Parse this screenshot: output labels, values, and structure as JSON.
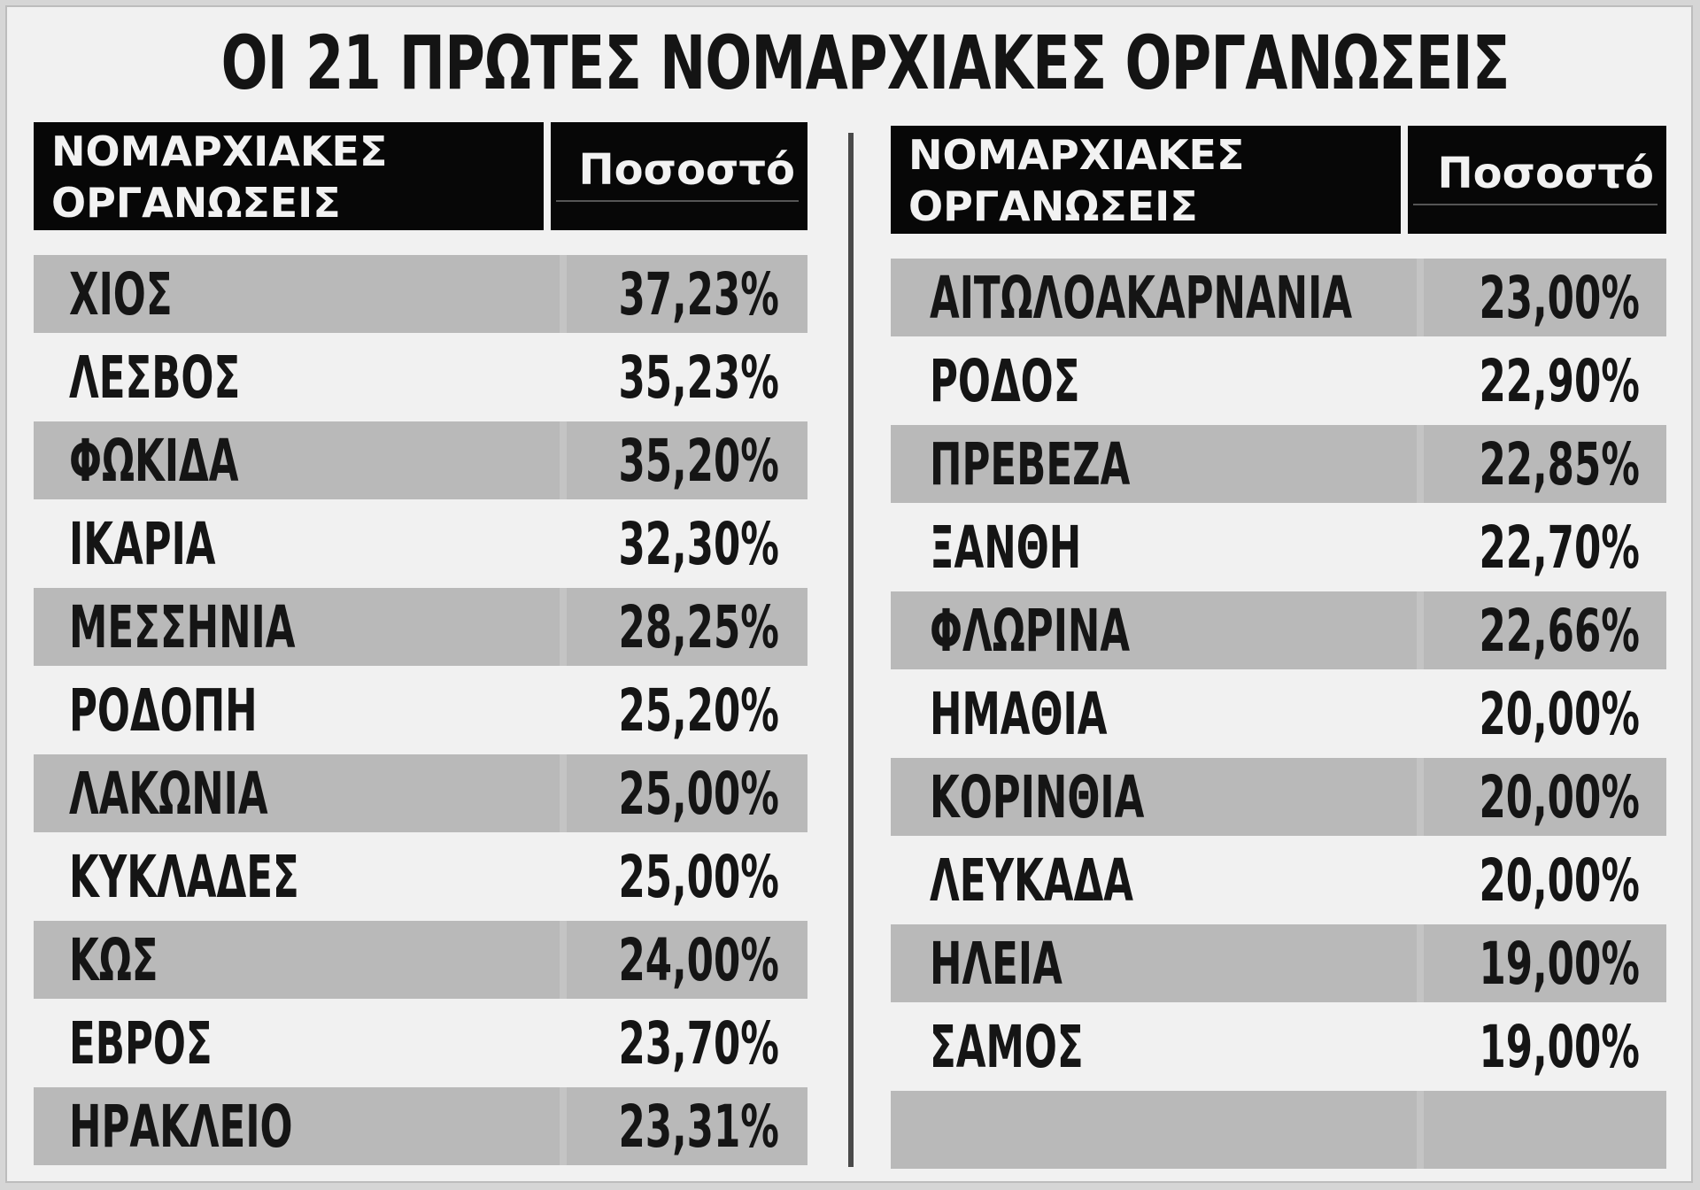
{
  "title": "ΟΙ 21 ΠΡΩΤΕΣ ΝΟΜΑΡΧΙΑΚΕΣ ΟΡΓΑΝΩΣΕΙΣ",
  "header": {
    "name_line1": "ΝΟΜΑΡΧΙΑΚΕΣ",
    "name_line2": "ΟΡΓΑΝΩΣΕΙΣ",
    "percent": "Ποσοστό"
  },
  "left_rows": [
    {
      "name": "ΧΙΟΣ",
      "pct": "37,23%"
    },
    {
      "name": "ΛΕΣΒΟΣ",
      "pct": "35,23%"
    },
    {
      "name": "ΦΩΚΙΔΑ",
      "pct": "35,20%"
    },
    {
      "name": "ΙΚΑΡΙΑ",
      "pct": "32,30%"
    },
    {
      "name": "ΜΕΣΣΗΝΙΑ",
      "pct": "28,25%"
    },
    {
      "name": "ΡΟΔΟΠΗ",
      "pct": "25,20%"
    },
    {
      "name": "ΛΑΚΩΝΙΑ",
      "pct": "25,00%"
    },
    {
      "name": "ΚΥΚΛΑΔΕΣ",
      "pct": "25,00%"
    },
    {
      "name": "ΚΩΣ",
      "pct": "24,00%"
    },
    {
      "name": "ΕΒΡΟΣ",
      "pct": "23,70%"
    },
    {
      "name": "ΗΡΑΚΛΕΙΟ",
      "pct": "23,31%"
    }
  ],
  "right_rows": [
    {
      "name": "ΑΙΤΩΛΟΑΚΑΡΝΑΝΙΑ",
      "pct": "23,00%"
    },
    {
      "name": "ΡΟΔΟΣ",
      "pct": "22,90%"
    },
    {
      "name": "ΠΡΕΒΕΖΑ",
      "pct": "22,85%"
    },
    {
      "name": "ΞΑΝΘΗ",
      "pct": "22,70%"
    },
    {
      "name": "ΦΛΩΡΙΝΑ",
      "pct": "22,66%"
    },
    {
      "name": "ΗΜΑΘΙΑ",
      "pct": "20,00%"
    },
    {
      "name": "ΚΟΡΙΝΘΙΑ",
      "pct": "20,00%"
    },
    {
      "name": "ΛΕΥΚΑΔΑ",
      "pct": "20,00%"
    },
    {
      "name": "ΗΛΕΙΑ",
      "pct": "19,00%"
    },
    {
      "name": "ΣΑΜΟΣ",
      "pct": "19,00%"
    },
    {
      "name": "",
      "pct": ""
    }
  ]
}
